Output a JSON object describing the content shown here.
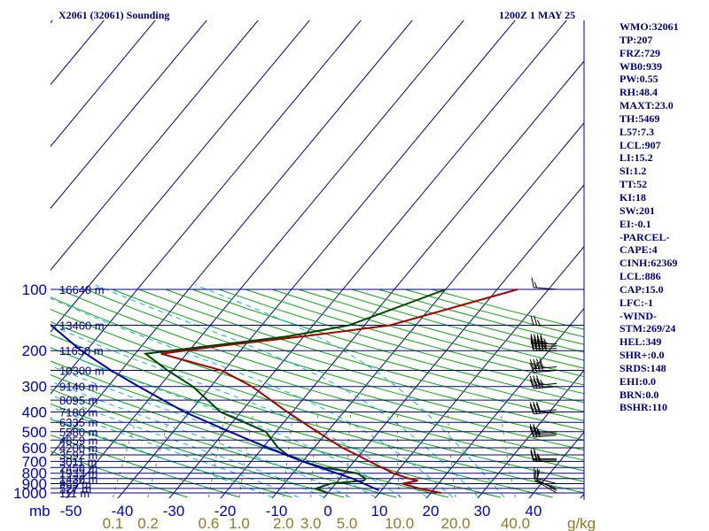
{
  "header": {
    "station": "X2061 (32061) Sounding",
    "time": "1200Z  1 MAY 25"
  },
  "indices": [
    "WMO:32061",
    "TP:207",
    "FRZ:729",
    "WB0:939",
    "PW:0.55",
    "RH:48.4",
    "MAXT:23.0",
    "TH:5469",
    "L57:7.3",
    "LCL:907",
    "LI:15.2",
    "SI:1.2",
    "TT:52",
    "KI:18",
    "SW:201",
    "EI:-0.1",
    "-PARCEL-",
    "CAPE:4",
    "CINH:62369",
    "LCL:886",
    "CAP:15.0",
    "LFC:-1",
    "-WIND-",
    "STM:269/24",
    "HEL:349",
    "SHR+:0.0",
    "SRDS:148",
    "EHI:0.0",
    "BRN:0.0",
    "BSHR:110"
  ],
  "colors": {
    "background": "#ffffff",
    "isobar": "#000080",
    "isotherm": "#000080",
    "dry_adiabat": "#00aa00",
    "moist_adiabat": "#00bbdd",
    "mixing_ratio": "#8b7d20",
    "temperature": "#aa0000",
    "dewpoint": "#004400",
    "parcel": "#0000aa",
    "wind_barb": "#000000"
  },
  "chart_data": {
    "type": "skew-t log-p sounding",
    "pressure_axis": {
      "unit": "mb",
      "ticks": [
        100,
        200,
        300,
        400,
        500,
        600,
        700,
        800,
        900,
        1000
      ],
      "range": [
        1000,
        100
      ]
    },
    "temperature_axis": {
      "unit": "°C",
      "ticks": [
        -50,
        -40,
        -30,
        -20,
        -10,
        0,
        10,
        20,
        30,
        40
      ],
      "tick_labels": [
        "-50",
        "-40",
        "-30",
        "-20",
        "-10",
        "0",
        "10",
        "20",
        "30",
        "40"
      ]
    },
    "height_labels": [
      {
        "p": 100,
        "label": "16640 m"
      },
      {
        "p": 150,
        "label": "13460 m"
      },
      {
        "p": 200,
        "label": "11650 m"
      },
      {
        "p": 250,
        "label": "10300 m"
      },
      {
        "p": 300,
        "label": "9140 m"
      },
      {
        "p": 350,
        "label": "8095 m"
      },
      {
        "p": 400,
        "label": "7180 m"
      },
      {
        "p": 450,
        "label": "6335 m"
      },
      {
        "p": 500,
        "label": "5580 m"
      },
      {
        "p": 550,
        "label": "4859 m"
      },
      {
        "p": 600,
        "label": "4200 m"
      },
      {
        "p": 650,
        "label": "3592 m"
      },
      {
        "p": 700,
        "label": "3011 m"
      },
      {
        "p": 750,
        "label": "2458 m"
      },
      {
        "p": 800,
        "label": "1933 m"
      },
      {
        "p": 850,
        "label": "1436 m"
      },
      {
        "p": 900,
        "label": "965 m"
      },
      {
        "p": 950,
        "label": "527 m"
      },
      {
        "p": 1000,
        "label": "111 m"
      }
    ],
    "mixing_ratio_labels": {
      "unit": "g/kg",
      "items": [
        {
          "label": "0.1",
          "value": 0.1
        },
        {
          "label": "0.2",
          "value": 0.2
        },
        {
          "label": "0.6",
          "value": 0.6
        },
        {
          "label": "1.0",
          "value": 1.0
        },
        {
          "label": "2.0",
          "value": 2.0
        },
        {
          "label": "3.0",
          "value": 3.0
        },
        {
          "label": "5.0",
          "value": 5.0
        },
        {
          "label": "10.0",
          "value": 10.0
        },
        {
          "label": "20.0",
          "value": 20.0
        },
        {
          "label": "40.0",
          "value": 40.0
        }
      ]
    },
    "series": [
      {
        "kind": "temperature",
        "points": [
          [
            1000,
            22
          ],
          [
            950,
            17
          ],
          [
            900,
            13
          ],
          [
            870,
            15.5
          ],
          [
            850,
            13.5
          ],
          [
            800,
            9.5
          ],
          [
            700,
            3
          ],
          [
            650,
            -0.5
          ],
          [
            600,
            -4.5
          ],
          [
            500,
            -12
          ],
          [
            400,
            -21
          ],
          [
            300,
            -32
          ],
          [
            250,
            -40.5
          ],
          [
            207,
            -55
          ],
          [
            190,
            -45
          ],
          [
            170,
            -30
          ],
          [
            150,
            -15
          ],
          [
            100,
            4
          ]
        ]
      },
      {
        "kind": "dewpoint",
        "points": [
          [
            1000,
            0
          ],
          [
            950,
            -3
          ],
          [
            900,
            -1
          ],
          [
            870,
            5
          ],
          [
            850,
            5
          ],
          [
            800,
            2.5
          ],
          [
            750,
            -5
          ],
          [
            700,
            -10
          ],
          [
            650,
            -14
          ],
          [
            600,
            -17
          ],
          [
            500,
            -22
          ],
          [
            400,
            -34
          ],
          [
            300,
            -43.5
          ],
          [
            250,
            -51
          ],
          [
            207,
            -58
          ],
          [
            170,
            -33
          ],
          [
            150,
            -23
          ],
          [
            100,
            -10
          ]
        ]
      },
      {
        "kind": "parcel",
        "points": [
          [
            970,
            9.5
          ],
          [
            900,
            5.5
          ],
          [
            850,
            2.5
          ],
          [
            800,
            -1.5
          ],
          [
            700,
            -10
          ],
          [
            600,
            -19
          ],
          [
            500,
            -29
          ],
          [
            400,
            -41
          ],
          [
            300,
            -54
          ],
          [
            250,
            -62
          ],
          [
            200,
            -71
          ],
          [
            150,
            -81
          ],
          [
            115,
            -89
          ]
        ]
      }
    ],
    "wind_barbs": [
      {
        "p": 1000,
        "dir": 300,
        "spd": 10
      },
      {
        "p": 975,
        "dir": 300,
        "spd": 10
      },
      {
        "p": 950,
        "dir": 290,
        "spd": 15
      },
      {
        "p": 900,
        "dir": 285,
        "spd": 20
      },
      {
        "p": 700,
        "dir": 270,
        "spd": 25
      },
      {
        "p": 690,
        "dir": 270,
        "spd": 25
      },
      {
        "p": 680,
        "dir": 270,
        "spd": 25
      },
      {
        "p": 520,
        "dir": 265,
        "spd": 25
      },
      {
        "p": 510,
        "dir": 265,
        "spd": 25
      },
      {
        "p": 500,
        "dir": 265,
        "spd": 25
      },
      {
        "p": 400,
        "dir": 265,
        "spd": 30
      },
      {
        "p": 390,
        "dir": 265,
        "spd": 30
      },
      {
        "p": 300,
        "dir": 265,
        "spd": 35
      },
      {
        "p": 290,
        "dir": 265,
        "spd": 35
      },
      {
        "p": 250,
        "dir": 265,
        "spd": 40
      },
      {
        "p": 240,
        "dir": 265,
        "spd": 40
      },
      {
        "p": 200,
        "dir": 270,
        "spd": 45
      },
      {
        "p": 195,
        "dir": 270,
        "spd": 45
      },
      {
        "p": 190,
        "dir": 270,
        "spd": 45
      },
      {
        "p": 185,
        "dir": 270,
        "spd": 45
      },
      {
        "p": 150,
        "dir": 270,
        "spd": 25
      },
      {
        "p": 100,
        "dir": 275,
        "spd": 15
      }
    ]
  }
}
